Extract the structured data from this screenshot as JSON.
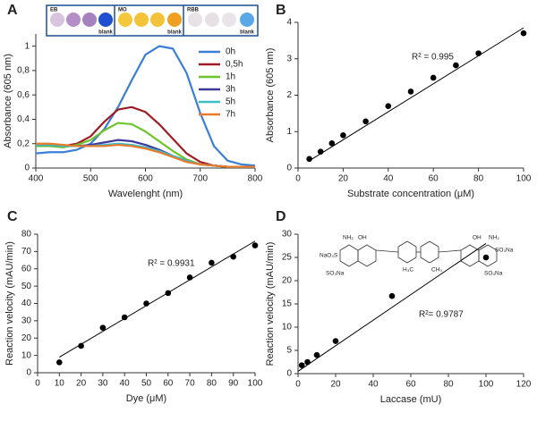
{
  "chart_data": [
    {
      "type": "line",
      "panel": "A",
      "xlabel": "Wavelenght (nm)",
      "ylabel": "Absorbance (605 nm)",
      "xlim": [
        400,
        800
      ],
      "xticks": [
        400,
        500,
        600,
        700,
        800
      ],
      "ylim": [
        0,
        1.1
      ],
      "yticks": [
        0,
        {
          "value": 0.2,
          "label": "0,2"
        },
        {
          "value": 0.4,
          "label": "0,4"
        },
        {
          "value": 0.6,
          "label": "0,6"
        },
        {
          "value": 0.8,
          "label": "0,8"
        },
        1
      ],
      "grid": false,
      "legend": "upper right",
      "inset": {
        "groups": [
          "EB",
          "MO",
          "RBB"
        ],
        "blank": "blank"
      },
      "x": [
        400,
        425,
        450,
        475,
        500,
        525,
        550,
        575,
        600,
        625,
        650,
        675,
        700,
        725,
        750,
        775,
        800
      ],
      "series": [
        {
          "name": "0h",
          "color": "#3a7fd5",
          "values": [
            0.12,
            0.13,
            0.13,
            0.15,
            0.2,
            0.32,
            0.5,
            0.72,
            0.93,
            1.0,
            0.98,
            0.78,
            0.45,
            0.18,
            0.06,
            0.03,
            0.02
          ]
        },
        {
          "name": "0,5h",
          "color": "#a01c24",
          "values": [
            0.2,
            0.19,
            0.18,
            0.2,
            0.26,
            0.38,
            0.48,
            0.5,
            0.46,
            0.36,
            0.24,
            0.12,
            0.05,
            0.02,
            0.01,
            0.01,
            0.01
          ]
        },
        {
          "name": "1h",
          "color": "#6cc32a",
          "values": [
            0.18,
            0.18,
            0.17,
            0.19,
            0.23,
            0.31,
            0.37,
            0.36,
            0.3,
            0.22,
            0.14,
            0.07,
            0.03,
            0.02,
            0.01,
            0.01,
            0.01
          ]
        },
        {
          "name": "3h",
          "color": "#3d3a9c",
          "values": [
            0.19,
            0.19,
            0.18,
            0.18,
            0.19,
            0.21,
            0.23,
            0.22,
            0.19,
            0.15,
            0.1,
            0.06,
            0.03,
            0.02,
            0.01,
            0.01,
            0.01
          ]
        },
        {
          "name": "5h",
          "color": "#3cbcc4",
          "values": [
            0.19,
            0.19,
            0.18,
            0.18,
            0.18,
            0.19,
            0.2,
            0.19,
            0.17,
            0.14,
            0.1,
            0.06,
            0.03,
            0.02,
            0.01,
            0.01,
            0.01
          ]
        },
        {
          "name": "7h",
          "color": "#e87a2c",
          "values": [
            0.2,
            0.2,
            0.19,
            0.18,
            0.18,
            0.18,
            0.19,
            0.18,
            0.16,
            0.13,
            0.09,
            0.05,
            0.03,
            0.02,
            0.01,
            0.01,
            0.01
          ]
        }
      ]
    },
    {
      "type": "scatter",
      "panel": "B",
      "xlabel": "Substrate concentration (μM)",
      "ylabel": "Absorbance  (605 nm)",
      "annotation": "R² = 0.995",
      "color": "#000000",
      "grid": false,
      "xlim": [
        0,
        100
      ],
      "xticks": [
        0,
        20,
        40,
        60,
        80,
        100
      ],
      "ylim": [
        0,
        4
      ],
      "yticks": [
        0,
        1,
        2,
        3,
        4
      ],
      "x": [
        5,
        10,
        15,
        20,
        30,
        40,
        50,
        60,
        70,
        80,
        100
      ],
      "values": [
        0.25,
        0.45,
        0.68,
        0.9,
        1.28,
        1.7,
        2.1,
        2.48,
        2.82,
        3.15,
        3.7
      ],
      "fit": {
        "x": [
          5,
          100
        ],
        "y": [
          0.2,
          3.85
        ]
      }
    },
    {
      "type": "scatter",
      "panel": "C",
      "xlabel": "Dye  (μM)",
      "ylabel": "Reaction velocity (mAU/min)",
      "annotation": "R² = 0.9931",
      "color": "#000000",
      "grid": false,
      "xlim": [
        0,
        100
      ],
      "xticks": [
        0,
        10,
        20,
        30,
        40,
        50,
        60,
        70,
        80,
        90,
        100
      ],
      "ylim": [
        0,
        80
      ],
      "yticks": [
        0,
        10,
        20,
        30,
        40,
        50,
        60,
        70,
        80
      ],
      "x": [
        10,
        20,
        30,
        40,
        50,
        60,
        70,
        80,
        90,
        100
      ],
      "values": [
        6,
        15.5,
        26,
        32,
        40,
        46,
        55,
        63.5,
        67,
        73.5
      ],
      "fit": {
        "x": [
          10,
          100
        ],
        "y": [
          9,
          76
        ]
      }
    },
    {
      "type": "scatter",
      "panel": "D",
      "xlabel": "Laccase (mU)",
      "ylabel": "Reaction velocity (mAU/min)",
      "annotation": "R²= 0.9787",
      "color": "#000000",
      "grid": false,
      "xlim": [
        0,
        120
      ],
      "xticks": [
        0,
        20,
        40,
        60,
        80,
        100,
        120
      ],
      "ylim": [
        0,
        30
      ],
      "yticks": [
        0,
        5,
        10,
        15,
        20,
        25,
        30
      ],
      "x": [
        2,
        5,
        10,
        20,
        50,
        100
      ],
      "values": [
        1.8,
        2.5,
        4,
        7,
        16.7,
        25
      ],
      "fit": {
        "x": [
          0,
          100
        ],
        "y": [
          0.5,
          28
        ]
      },
      "structure_labels": [
        "NH₂",
        "OH",
        "NaO₃S",
        "SO₃Na",
        "H₃C",
        "CH₃",
        "OH",
        "NH₂",
        "SO₃Na",
        "SO₃Na"
      ]
    }
  ]
}
